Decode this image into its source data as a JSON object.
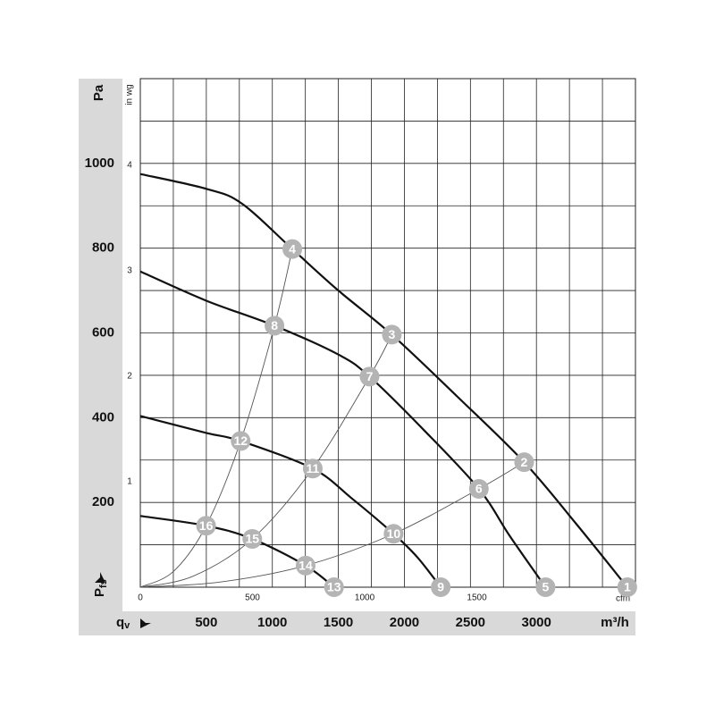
{
  "chart_data": {
    "type": "line",
    "y_label": "Pa",
    "y2_label": "in wg",
    "x_label": "m³/h",
    "x2_label": "cfm",
    "x_symbol": "q",
    "x_symbol_sub": "v",
    "y_symbol": "P",
    "y_symbol_sub": "fs",
    "xlim": [
      0,
      3750
    ],
    "ylim": [
      0,
      1200
    ],
    "x2lim": [
      0,
      2207
    ],
    "y2lim": [
      0,
      4.82
    ],
    "xticks": [
      500,
      1000,
      1500,
      2000,
      2500,
      3000
    ],
    "yticks": [
      200,
      400,
      600,
      800,
      1000
    ],
    "x2ticks": [
      0,
      500,
      1000,
      1500
    ],
    "y2ticks": [
      1,
      2,
      3,
      4
    ],
    "xgrid": [
      250,
      500,
      750,
      1000,
      1250,
      1500,
      1750,
      2000,
      2250,
      2500,
      2750,
      3000,
      3250,
      3500,
      3750
    ],
    "ygrid": [
      100,
      200,
      300,
      400,
      500,
      600,
      700,
      800,
      900,
      1000,
      1100,
      1200
    ],
    "series": [
      {
        "color": "#111111",
        "x": [
          0,
          500,
          770,
          1151,
          1500,
          1905,
          2400,
          2907,
          3300,
          3688
        ],
        "values": [
          975,
          940,
          905,
          798,
          700,
          596,
          450,
          295,
          150,
          0
        ],
        "point_labels": [
          null,
          null,
          null,
          "4",
          null,
          "3",
          null,
          "2",
          null,
          "1"
        ]
      },
      {
        "color": "#111111",
        "x": [
          0,
          500,
          1016,
          1500,
          1736,
          2150,
          2564,
          2800,
          3069
        ],
        "values": [
          745,
          676,
          617,
          549,
          497,
          370,
          232,
          120,
          0
        ],
        "point_labels": [
          null,
          null,
          "8",
          null,
          "7",
          null,
          "6",
          null,
          "5"
        ]
      },
      {
        "color": "#111111",
        "x": [
          0,
          500,
          760,
          1306,
          1600,
          1918,
          2100,
          2275
        ],
        "values": [
          404,
          364,
          345,
          280,
          210,
          126,
          70,
          0
        ],
        "point_labels": [
          null,
          null,
          "12",
          "11",
          null,
          "10",
          null,
          "9"
        ]
      },
      {
        "color": "#111111",
        "x": [
          0,
          498,
          848,
          1252,
          1467
        ],
        "values": [
          168,
          145,
          114,
          51,
          0
        ],
        "point_labels": [
          "",
          "16",
          "15",
          "14",
          "13"
        ]
      }
    ],
    "system_curves": [
      {
        "color": "#555555",
        "x": [
          0,
          250,
          498,
          760,
          1016,
          1151
        ],
        "values": [
          0,
          37,
          145,
          345,
          617,
          798
        ]
      },
      {
        "color": "#555555",
        "x": [
          0,
          400,
          848,
          1306,
          1736,
          1905
        ],
        "values": [
          0,
          26,
          114,
          280,
          497,
          596
        ]
      },
      {
        "color": "#555555",
        "x": [
          0,
          600,
          1252,
          1918,
          2564,
          2907
        ],
        "values": [
          0,
          12,
          51,
          126,
          232,
          295
        ]
      }
    ],
    "marker_color": "#b4b4b4",
    "band_color": "#d9d9d9"
  }
}
